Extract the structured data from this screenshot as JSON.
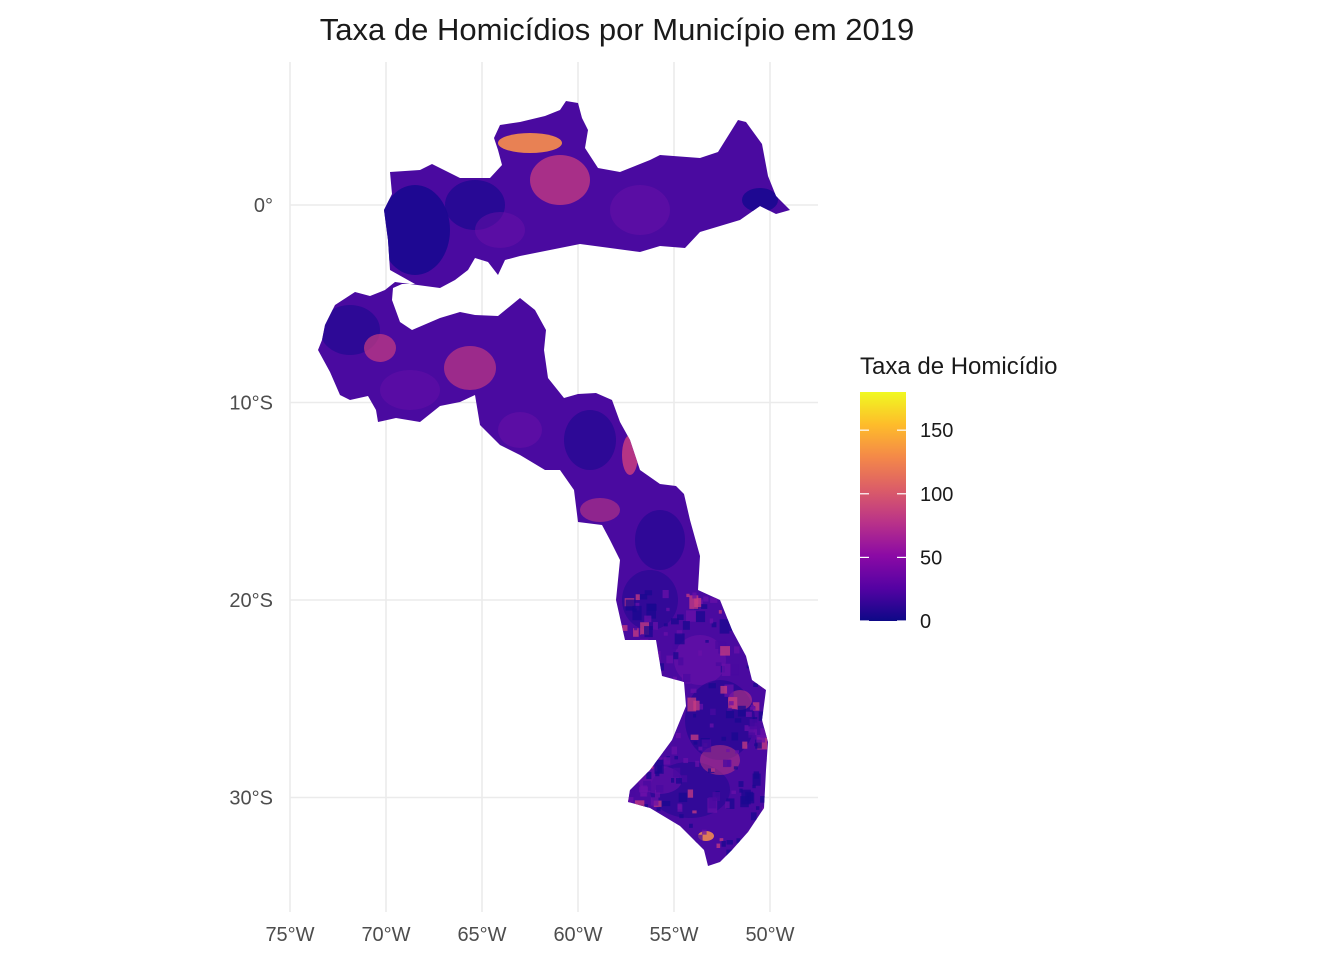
{
  "title": "Taxa de Homicídios por Município em 2019",
  "map": {
    "lon_range": [
      -76.5,
      -48.5
    ],
    "lat_range": [
      -35.5,
      7.2
    ],
    "x_ticks": [
      {
        "value": -75,
        "label": "75°W"
      },
      {
        "value": -70,
        "label": "70°W"
      },
      {
        "value": -65,
        "label": "65°W"
      },
      {
        "value": -60,
        "label": "60°W"
      },
      {
        "value": -55,
        "label": "55°W"
      },
      {
        "value": -50,
        "label": "50°W"
      }
    ],
    "y_ticks": [
      {
        "value": 0,
        "label": "0°"
      },
      {
        "value": -10,
        "label": "10°S"
      },
      {
        "value": -20,
        "label": "20°S"
      },
      {
        "value": -30,
        "label": "30°S"
      }
    ],
    "grid": true
  },
  "legend": {
    "title": "Taxa de Homicídio",
    "min": 0,
    "max": 180,
    "palette": "plasma",
    "colors": [
      "#0d0887",
      "#5402a3",
      "#8b0aa5",
      "#b93289",
      "#db5c68",
      "#f48849",
      "#febc2a",
      "#f0f921"
    ],
    "breaks": [
      {
        "value": 0,
        "label": "0"
      },
      {
        "value": 50,
        "label": "50"
      },
      {
        "value": 100,
        "label": "100"
      },
      {
        "value": 150,
        "label": "150"
      }
    ],
    "position": "right"
  },
  "palette_fills": {
    "dominant": "#4a0aa0",
    "low": "#1a0890",
    "mid": "#6a10a8",
    "high": "#c83c80",
    "peak": "#f08850"
  }
}
